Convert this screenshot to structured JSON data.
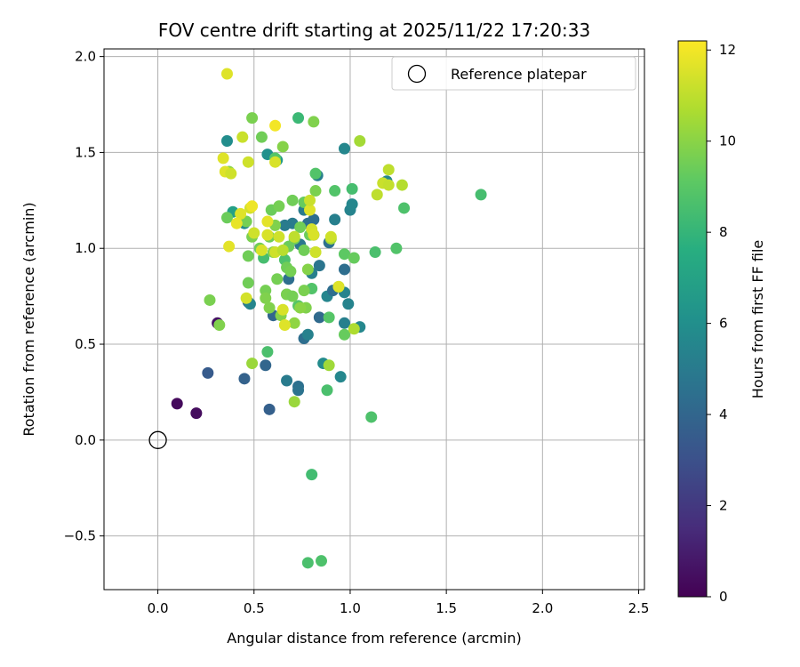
{
  "chart_data": {
    "type": "scatter",
    "title": "FOV centre drift starting at 2025/11/22 17:20:33",
    "xlabel": "Angular distance from reference (arcmin)",
    "ylabel": "Rotation from reference (arcmin)",
    "xlim": [
      -0.28,
      2.53
    ],
    "ylim": [
      -0.78,
      2.04
    ],
    "xticks": [
      0.0,
      0.5,
      1.0,
      1.5,
      2.0,
      2.5
    ],
    "xtick_labels": [
      "0.0",
      "0.5",
      "1.0",
      "1.5",
      "2.0",
      "2.5"
    ],
    "yticks": [
      -0.5,
      0.0,
      0.5,
      1.0,
      1.5,
      2.0
    ],
    "ytick_labels": [
      "−0.5",
      "0.0",
      "0.5",
      "1.0",
      "1.5",
      "2.0"
    ],
    "grid": true,
    "legend": {
      "position": "top-right",
      "entries": [
        "Reference platepar"
      ]
    },
    "reference_point": {
      "x": 0.0,
      "y": 0.0,
      "label": "Reference platepar"
    },
    "colorbar": {
      "label": "Hours from first FF file",
      "min": 0,
      "max": 12.2,
      "colormap": "viridis",
      "ticks": [
        0,
        2,
        4,
        6,
        8,
        10,
        12
      ],
      "tick_labels": [
        "0",
        "2",
        "4",
        "6",
        "8",
        "10",
        "12"
      ]
    },
    "points": [
      {
        "x": 0.1,
        "y": 0.19,
        "h": 0.3
      },
      {
        "x": 0.2,
        "y": 0.14,
        "h": 0.4
      },
      {
        "x": 0.31,
        "y": 0.61,
        "h": 0.6
      },
      {
        "x": 0.26,
        "y": 0.35,
        "h": 3.5
      },
      {
        "x": 0.45,
        "y": 0.32,
        "h": 3.8
      },
      {
        "x": 0.56,
        "y": 0.39,
        "h": 4.0
      },
      {
        "x": 0.58,
        "y": 0.16,
        "h": 3.7
      },
      {
        "x": 0.67,
        "y": 0.31,
        "h": 5.0
      },
      {
        "x": 0.73,
        "y": 0.28,
        "h": 4.5
      },
      {
        "x": 0.73,
        "y": 0.26,
        "h": 4.6
      },
      {
        "x": 0.47,
        "y": 0.72,
        "h": 4.2
      },
      {
        "x": 0.48,
        "y": 0.71,
        "h": 5.5
      },
      {
        "x": 0.6,
        "y": 0.65,
        "h": 4.0
      },
      {
        "x": 0.76,
        "y": 0.53,
        "h": 4.4
      },
      {
        "x": 0.78,
        "y": 0.55,
        "h": 5.3
      },
      {
        "x": 0.84,
        "y": 0.64,
        "h": 4.2
      },
      {
        "x": 0.86,
        "y": 0.4,
        "h": 5.8
      },
      {
        "x": 0.95,
        "y": 0.33,
        "h": 5.6
      },
      {
        "x": 0.97,
        "y": 0.61,
        "h": 5.2
      },
      {
        "x": 1.05,
        "y": 0.59,
        "h": 5.6
      },
      {
        "x": 0.99,
        "y": 0.71,
        "h": 5.4
      },
      {
        "x": 0.88,
        "y": 0.75,
        "h": 5.5
      },
      {
        "x": 0.91,
        "y": 0.78,
        "h": 4.4
      },
      {
        "x": 0.97,
        "y": 0.77,
        "h": 5.4
      },
      {
        "x": 0.68,
        "y": 0.84,
        "h": 4.4
      },
      {
        "x": 0.8,
        "y": 0.87,
        "h": 5.2
      },
      {
        "x": 0.97,
        "y": 0.89,
        "h": 4.4
      },
      {
        "x": 0.84,
        "y": 0.91,
        "h": 4.7
      },
      {
        "x": 0.89,
        "y": 1.03,
        "h": 4.5
      },
      {
        "x": 0.81,
        "y": 1.07,
        "h": 4.3
      },
      {
        "x": 0.74,
        "y": 1.02,
        "h": 4.8
      },
      {
        "x": 0.7,
        "y": 1.13,
        "h": 5.0
      },
      {
        "x": 0.66,
        "y": 1.12,
        "h": 5.0
      },
      {
        "x": 0.78,
        "y": 1.13,
        "h": 4.5
      },
      {
        "x": 0.81,
        "y": 1.15,
        "h": 4.4
      },
      {
        "x": 0.76,
        "y": 1.2,
        "h": 5.0
      },
      {
        "x": 0.92,
        "y": 1.15,
        "h": 5.2
      },
      {
        "x": 1.0,
        "y": 1.2,
        "h": 5.4
      },
      {
        "x": 1.01,
        "y": 1.23,
        "h": 5.6
      },
      {
        "x": 0.83,
        "y": 1.38,
        "h": 5.2
      },
      {
        "x": 0.97,
        "y": 1.52,
        "h": 5.6
      },
      {
        "x": 0.36,
        "y": 1.56,
        "h": 5.9
      },
      {
        "x": 0.57,
        "y": 1.49,
        "h": 6.1
      },
      {
        "x": 0.62,
        "y": 1.46,
        "h": 6.5
      },
      {
        "x": 1.19,
        "y": 1.35,
        "h": 5.6
      },
      {
        "x": 0.45,
        "y": 1.13,
        "h": 5.8
      },
      {
        "x": 0.39,
        "y": 1.19,
        "h": 6.9
      },
      {
        "x": 1.68,
        "y": 1.28,
        "h": 8.5
      },
      {
        "x": 0.8,
        "y": -0.18,
        "h": 8.4
      },
      {
        "x": 0.78,
        "y": -0.64,
        "h": 8.6
      },
      {
        "x": 0.85,
        "y": -0.63,
        "h": 8.7
      },
      {
        "x": 0.57,
        "y": 0.46,
        "h": 8.6
      },
      {
        "x": 1.11,
        "y": 0.12,
        "h": 8.7
      },
      {
        "x": 0.88,
        "y": 0.26,
        "h": 8.6
      },
      {
        "x": 0.73,
        "y": 1.68,
        "h": 8.2
      },
      {
        "x": 0.89,
        "y": 0.64,
        "h": 8.9
      },
      {
        "x": 1.01,
        "y": 1.31,
        "h": 8.5
      },
      {
        "x": 1.28,
        "y": 1.21,
        "h": 8.7
      },
      {
        "x": 1.24,
        "y": 1.0,
        "h": 8.8
      },
      {
        "x": 1.13,
        "y": 0.98,
        "h": 8.6
      },
      {
        "x": 0.92,
        "y": 1.3,
        "h": 8.8
      },
      {
        "x": 0.82,
        "y": 1.39,
        "h": 8.8
      },
      {
        "x": 0.61,
        "y": 1.47,
        "h": 8.9
      },
      {
        "x": 0.66,
        "y": 0.94,
        "h": 8.7
      },
      {
        "x": 0.55,
        "y": 0.95,
        "h": 8.5
      },
      {
        "x": 0.8,
        "y": 0.79,
        "h": 8.8
      },
      {
        "x": 0.67,
        "y": 0.76,
        "h": 8.6
      },
      {
        "x": 0.73,
        "y": 0.7,
        "h": 8.9
      },
      {
        "x": 0.97,
        "y": 0.97,
        "h": 9.1
      },
      {
        "x": 1.02,
        "y": 0.95,
        "h": 9.3
      },
      {
        "x": 0.97,
        "y": 0.55,
        "h": 9.3
      },
      {
        "x": 0.94,
        "y": 0.8,
        "h": 9.5
      },
      {
        "x": 0.49,
        "y": 1.68,
        "h": 9.7
      },
      {
        "x": 0.81,
        "y": 1.66,
        "h": 9.8
      },
      {
        "x": 0.54,
        "y": 1.58,
        "h": 9.5
      },
      {
        "x": 0.65,
        "y": 1.53,
        "h": 9.9
      },
      {
        "x": 1.05,
        "y": 1.56,
        "h": 10.5
      },
      {
        "x": 0.7,
        "y": 1.25,
        "h": 9.5
      },
      {
        "x": 0.76,
        "y": 1.24,
        "h": 9.3
      },
      {
        "x": 0.82,
        "y": 1.3,
        "h": 9.7
      },
      {
        "x": 0.37,
        "y": 1.4,
        "h": 10.0
      },
      {
        "x": 0.36,
        "y": 1.16,
        "h": 9.4
      },
      {
        "x": 0.46,
        "y": 1.14,
        "h": 9.6
      },
      {
        "x": 0.59,
        "y": 1.2,
        "h": 9.4
      },
      {
        "x": 0.63,
        "y": 1.22,
        "h": 9.6
      },
      {
        "x": 0.61,
        "y": 1.12,
        "h": 9.8
      },
      {
        "x": 0.49,
        "y": 1.06,
        "h": 9.7
      },
      {
        "x": 0.58,
        "y": 1.06,
        "h": 9.5
      },
      {
        "x": 0.71,
        "y": 1.05,
        "h": 9.6
      },
      {
        "x": 0.68,
        "y": 1.01,
        "h": 9.4
      },
      {
        "x": 0.53,
        "y": 1.0,
        "h": 9.5
      },
      {
        "x": 0.47,
        "y": 0.96,
        "h": 9.5
      },
      {
        "x": 0.6,
        "y": 0.98,
        "h": 9.8
      },
      {
        "x": 0.76,
        "y": 0.99,
        "h": 9.5
      },
      {
        "x": 0.79,
        "y": 1.07,
        "h": 9.4
      },
      {
        "x": 0.74,
        "y": 1.11,
        "h": 9.5
      },
      {
        "x": 0.67,
        "y": 0.9,
        "h": 9.5
      },
      {
        "x": 0.69,
        "y": 0.88,
        "h": 9.6
      },
      {
        "x": 0.78,
        "y": 0.89,
        "h": 9.9
      },
      {
        "x": 0.62,
        "y": 0.84,
        "h": 9.6
      },
      {
        "x": 0.47,
        "y": 0.82,
        "h": 9.5
      },
      {
        "x": 0.56,
        "y": 0.78,
        "h": 9.6
      },
      {
        "x": 0.56,
        "y": 0.74,
        "h": 9.8
      },
      {
        "x": 0.67,
        "y": 0.76,
        "h": 9.7
      },
      {
        "x": 0.7,
        "y": 0.75,
        "h": 9.6
      },
      {
        "x": 0.58,
        "y": 0.69,
        "h": 9.8
      },
      {
        "x": 0.64,
        "y": 0.65,
        "h": 9.9
      },
      {
        "x": 0.71,
        "y": 0.61,
        "h": 10.1
      },
      {
        "x": 0.77,
        "y": 0.69,
        "h": 9.8
      },
      {
        "x": 0.74,
        "y": 0.69,
        "h": 10.0
      },
      {
        "x": 0.76,
        "y": 0.78,
        "h": 9.7
      },
      {
        "x": 0.27,
        "y": 0.73,
        "h": 9.7
      },
      {
        "x": 0.32,
        "y": 0.6,
        "h": 9.8
      },
      {
        "x": 0.49,
        "y": 0.4,
        "h": 10.3
      },
      {
        "x": 0.89,
        "y": 0.39,
        "h": 10.4
      },
      {
        "x": 0.71,
        "y": 0.2,
        "h": 10.3
      },
      {
        "x": 1.02,
        "y": 0.58,
        "h": 10.7
      },
      {
        "x": 0.9,
        "y": 1.05,
        "h": 10.5
      },
      {
        "x": 0.82,
        "y": 0.98,
        "h": 10.8
      },
      {
        "x": 1.27,
        "y": 1.33,
        "h": 10.8
      },
      {
        "x": 1.2,
        "y": 1.41,
        "h": 11.0
      },
      {
        "x": 1.17,
        "y": 1.34,
        "h": 11.2
      },
      {
        "x": 1.2,
        "y": 1.33,
        "h": 11.1
      },
      {
        "x": 1.14,
        "y": 1.28,
        "h": 11.0
      },
      {
        "x": 0.94,
        "y": 0.8,
        "h": 11.6
      },
      {
        "x": 0.65,
        "y": 0.68,
        "h": 11.5
      },
      {
        "x": 0.66,
        "y": 0.6,
        "h": 11.6
      },
      {
        "x": 0.36,
        "y": 1.91,
        "h": 11.6
      },
      {
        "x": 0.61,
        "y": 1.64,
        "h": 12.0
      },
      {
        "x": 0.44,
        "y": 1.58,
        "h": 11.2
      },
      {
        "x": 0.34,
        "y": 1.47,
        "h": 11.6
      },
      {
        "x": 0.47,
        "y": 1.45,
        "h": 11.3
      },
      {
        "x": 0.61,
        "y": 1.45,
        "h": 11.5
      },
      {
        "x": 0.35,
        "y": 1.4,
        "h": 11.6
      },
      {
        "x": 0.38,
        "y": 1.39,
        "h": 11.3
      },
      {
        "x": 0.48,
        "y": 1.21,
        "h": 11.4
      },
      {
        "x": 0.49,
        "y": 1.22,
        "h": 11.9
      },
      {
        "x": 0.43,
        "y": 1.18,
        "h": 11.6
      },
      {
        "x": 0.41,
        "y": 1.13,
        "h": 11.8
      },
      {
        "x": 0.57,
        "y": 1.14,
        "h": 11.7
      },
      {
        "x": 0.5,
        "y": 1.08,
        "h": 11.3
      },
      {
        "x": 0.57,
        "y": 1.07,
        "h": 11.5
      },
      {
        "x": 0.63,
        "y": 1.06,
        "h": 11.3
      },
      {
        "x": 0.37,
        "y": 1.01,
        "h": 11.7
      },
      {
        "x": 0.61,
        "y": 0.98,
        "h": 11.3
      },
      {
        "x": 0.54,
        "y": 0.99,
        "h": 11.5
      },
      {
        "x": 0.71,
        "y": 1.06,
        "h": 11.5
      },
      {
        "x": 0.79,
        "y": 1.2,
        "h": 11.6
      },
      {
        "x": 0.79,
        "y": 1.25,
        "h": 11.2
      },
      {
        "x": 0.8,
        "y": 1.1,
        "h": 11.4
      },
      {
        "x": 0.81,
        "y": 1.07,
        "h": 11.5
      },
      {
        "x": 0.82,
        "y": 0.98,
        "h": 11.3
      },
      {
        "x": 0.9,
        "y": 1.06,
        "h": 11.3
      },
      {
        "x": 0.46,
        "y": 0.74,
        "h": 11.4
      },
      {
        "x": 0.71,
        "y": 1.06,
        "h": 11.0
      },
      {
        "x": 0.65,
        "y": 0.99,
        "h": 10.9
      }
    ]
  }
}
